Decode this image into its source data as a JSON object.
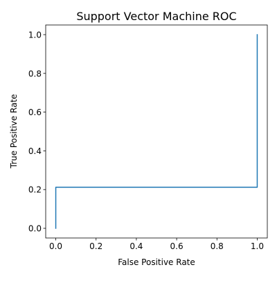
{
  "chart_data": {
    "type": "line",
    "title": "Support Vector Machine ROC",
    "xlabel": "False Positive Rate",
    "ylabel": "True Positive Rate",
    "xlim": [
      -0.05,
      1.05
    ],
    "ylim": [
      -0.05,
      1.05
    ],
    "xticks": [
      0.0,
      0.2,
      0.4,
      0.6,
      0.8,
      1.0
    ],
    "yticks": [
      0.0,
      0.2,
      0.4,
      0.6,
      0.8,
      1.0
    ],
    "xtick_labels": [
      "0.0",
      "0.2",
      "0.4",
      "0.6",
      "0.8",
      "1.0"
    ],
    "ytick_labels": [
      "0.0",
      "0.2",
      "0.4",
      "0.6",
      "0.8",
      "1.0"
    ],
    "grid": false,
    "series": [
      {
        "x": [
          0.0,
          0.0,
          1.0,
          1.0
        ],
        "y": [
          0.0,
          0.212,
          0.212,
          1.0
        ],
        "color": "#1f77b4"
      }
    ]
  }
}
